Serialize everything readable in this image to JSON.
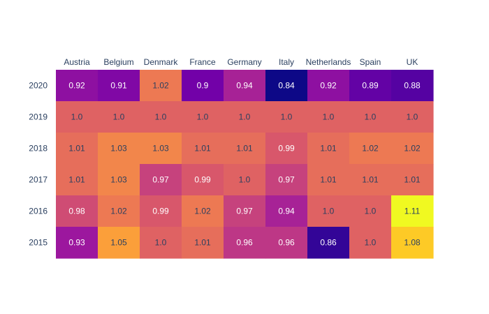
{
  "chart_data": {
    "type": "heatmap",
    "title": "",
    "xlabel": "",
    "ylabel": "",
    "x": [
      "Austria",
      "Belgium",
      "Denmark",
      "France",
      "Germany",
      "Italy",
      "Netherlands",
      "Spain",
      "UK"
    ],
    "y": [
      "2020",
      "2019",
      "2018",
      "2017",
      "2016",
      "2015"
    ],
    "z": [
      [
        "0.92",
        "0.91",
        "1.02",
        "0.9",
        "0.94",
        "0.84",
        "0.92",
        "0.89",
        "0.88"
      ],
      [
        "1.0",
        "1.0",
        "1.0",
        "1.0",
        "1.0",
        "1.0",
        "1.0",
        "1.0",
        "1.0"
      ],
      [
        "1.01",
        "1.03",
        "1.03",
        "1.01",
        "1.01",
        "0.99",
        "1.01",
        "1.02",
        "1.02"
      ],
      [
        "1.01",
        "1.03",
        "0.97",
        "0.99",
        "1.0",
        "0.97",
        "1.01",
        "1.01",
        "1.01"
      ],
      [
        "0.98",
        "1.02",
        "0.99",
        "1.02",
        "0.97",
        "0.94",
        "1.0",
        "1.0",
        "1.11"
      ],
      [
        "0.93",
        "1.05",
        "1.0",
        "1.01",
        "0.96",
        "0.96",
        "0.86",
        "1.0",
        "1.08"
      ]
    ],
    "zrange": [
      0.84,
      1.11
    ],
    "colorscale": [
      "#0d0887",
      "#46039f",
      "#7201a8",
      "#9c179e",
      "#bd3786",
      "#d8576b",
      "#ed7953",
      "#fb9f3a",
      "#fdca26",
      "#f0f921"
    ],
    "x_axis_side": "top",
    "show_colorbar": false,
    "grid": false
  }
}
